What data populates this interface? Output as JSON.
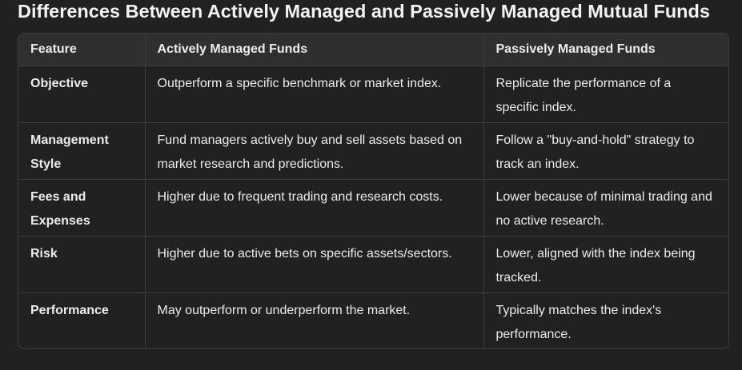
{
  "title": "Differences Between Actively Managed and Passively Managed Mutual Funds",
  "table": {
    "headers": [
      "Feature",
      "Actively Managed Funds",
      "Passively Managed Funds"
    ],
    "rows": [
      {
        "feature": "Objective",
        "active": "Outperform a specific benchmark or market index.",
        "passive": "Replicate the performance of a specific index."
      },
      {
        "feature": "Management Style",
        "active": "Fund managers actively buy and sell assets based on market research and predictions.",
        "passive": "Follow a \"buy-and-hold\" strategy to track an index."
      },
      {
        "feature": "Fees and Expenses",
        "active": "Higher due to frequent trading and research costs.",
        "passive": "Lower because of minimal trading and no active research."
      },
      {
        "feature": "Risk",
        "active": "Higher due to active bets on specific assets/sectors.",
        "passive": "Lower, aligned with the index being tracked."
      },
      {
        "feature": "Performance",
        "active": "May outperform or underperform the market.",
        "passive": "Typically matches the index's performance."
      }
    ]
  }
}
